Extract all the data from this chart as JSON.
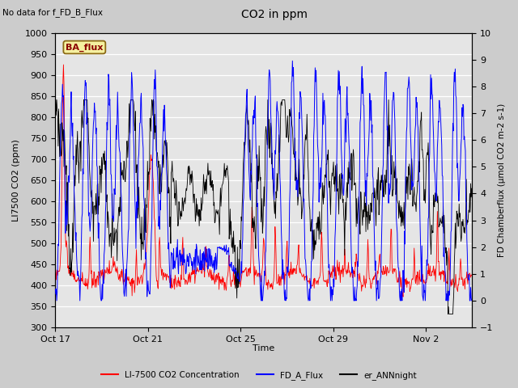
{
  "title": "CO2 in ppm",
  "top_left_text": "No data for f_FD_B_Flux",
  "legend_box_text": "BA_flux",
  "xlabel": "Time",
  "ylabel_left": "LI7500 CO2 (ppm)",
  "ylabel_right": "FD Chamberflux (μmol CO2 m-2 s-1)",
  "ylim_left": [
    300,
    1000
  ],
  "ylim_right": [
    -1.0,
    10.0
  ],
  "yticks_left": [
    300,
    350,
    400,
    450,
    500,
    550,
    600,
    650,
    700,
    750,
    800,
    850,
    900,
    950,
    1000
  ],
  "yticks_right": [
    -1.0,
    0.0,
    1.0,
    2.0,
    3.0,
    4.0,
    5.0,
    6.0,
    7.0,
    8.0,
    9.0,
    10.0
  ],
  "xtick_labels": [
    "Oct 17",
    "Oct 21",
    "Oct 25",
    "Oct 29",
    "Nov 2"
  ],
  "xtick_pos": [
    0,
    4,
    8,
    12,
    16
  ],
  "xlim": [
    0,
    18
  ],
  "background_color": "#cccccc",
  "plot_bg_color": "#e5e5e5",
  "grid_color": "#ffffff",
  "red_color": "#ff0000",
  "blue_color": "#0000ff",
  "black_color": "#000000",
  "legend_entries": [
    {
      "label": "LI-7500 CO2 Concentration",
      "color": "#ff0000"
    },
    {
      "label": "FD_A_Flux",
      "color": "#0000ff"
    },
    {
      "label": "er_ANNnight",
      "color": "#000000"
    }
  ],
  "figsize": [
    6.4,
    4.8
  ],
  "dpi": 100
}
